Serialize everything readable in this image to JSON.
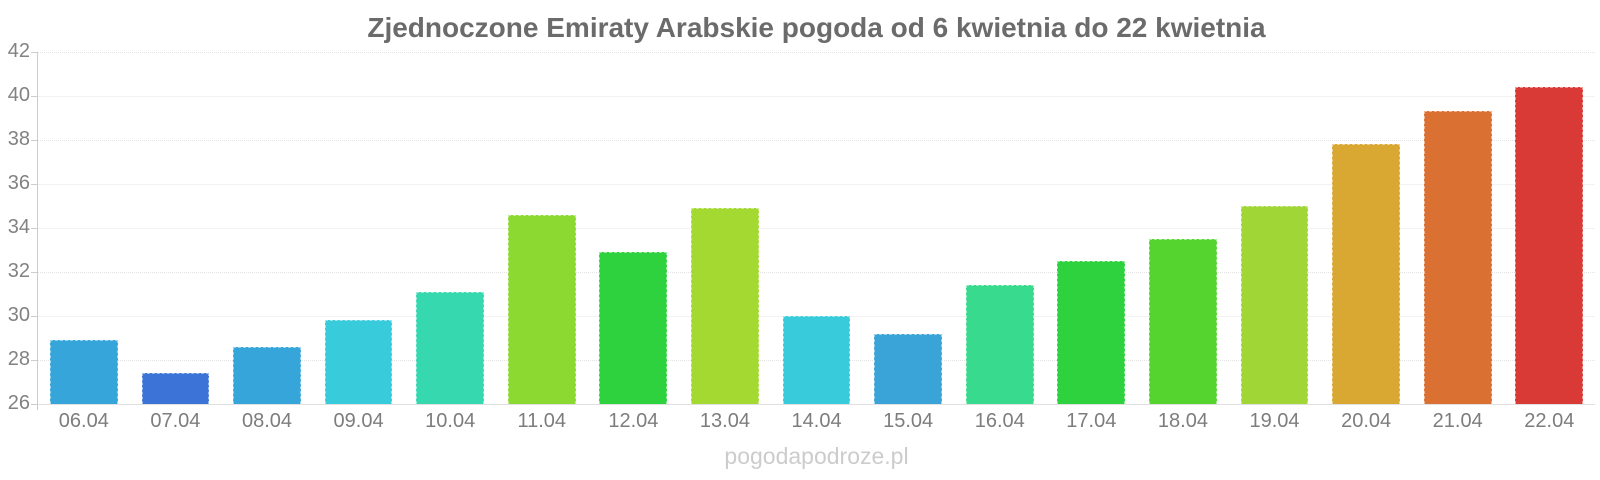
{
  "chart_data": {
    "type": "bar",
    "title": "Zjednoczone Emiraty Arabskie pogoda od 6 kwietnia do 22 kwietnia",
    "categories": [
      "06.04",
      "07.04",
      "08.04",
      "09.04",
      "10.04",
      "11.04",
      "12.04",
      "13.04",
      "14.04",
      "15.04",
      "16.04",
      "17.04",
      "18.04",
      "19.04",
      "20.04",
      "21.04",
      "22.04"
    ],
    "values": [
      28.9,
      27.4,
      28.6,
      29.8,
      31.1,
      34.6,
      32.9,
      34.9,
      30.0,
      29.2,
      31.4,
      32.5,
      33.5,
      35.0,
      37.8,
      39.3,
      40.4
    ],
    "bar_colors": [
      "#36a6da",
      "#3b74d6",
      "#36a6da",
      "#38cbdb",
      "#36d8b0",
      "#8cd932",
      "#2ed23e",
      "#a3d930",
      "#38cbdb",
      "#3aa3d8",
      "#38da8e",
      "#2ed23e",
      "#55d430",
      "#a0d636",
      "#d9a832",
      "#da7032",
      "#da3a35"
    ],
    "xlabel": "",
    "ylabel": "",
    "ylim": [
      26,
      42
    ],
    "y_ticks": [
      42,
      40,
      38,
      36,
      34,
      32,
      30,
      28,
      26
    ],
    "dotted_gridlines": [
      42,
      38,
      32,
      28
    ],
    "grid": true,
    "legend": "none"
  },
  "watermark": "pogodapodroze.pl",
  "colors": {
    "title": "#6b6b6b",
    "axis_label": "#7d7d7d",
    "y_label": "#828282",
    "gridline_solid": "#f2f2f2",
    "gridline_dotted": "#e3e3e3",
    "axis_line": "#cccccc",
    "watermark": "#cccccc",
    "background": "#ffffff"
  }
}
